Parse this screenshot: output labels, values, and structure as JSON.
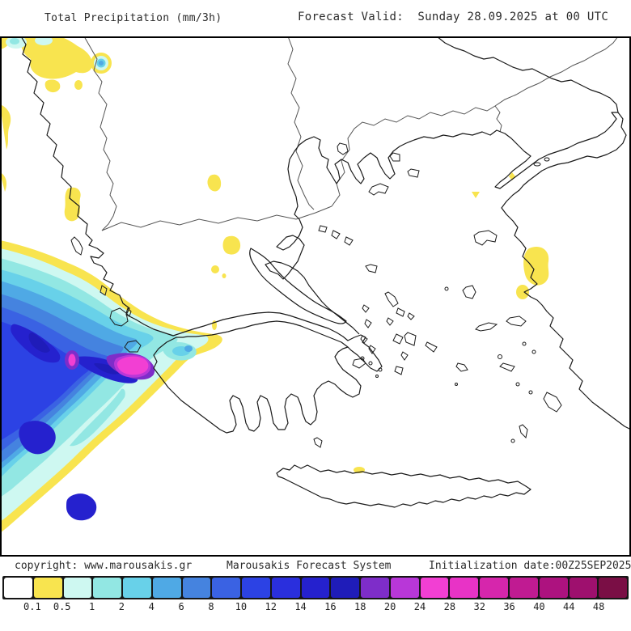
{
  "header": {
    "title": "Total Precipitation (mm/3h)",
    "forecast_valid": "Forecast Valid:  Sunday 28.09.2025 at 00 UTC"
  },
  "footer": {
    "copyright": "copyright: www.marousakis.gr",
    "system_name": "Marousakis Forecast System",
    "init_date": "Initialization date:00Z25SEP2025"
  },
  "colorbar": {
    "unit_labels": [
      "0.1",
      "0.5",
      "1",
      "2",
      "4",
      "6",
      "8",
      "10",
      "12",
      "14",
      "16",
      "18",
      "20",
      "24",
      "28",
      "32",
      "36",
      "40",
      "44",
      "48"
    ],
    "colors": [
      "#ffffff",
      "#f8e44f",
      "#cef8f1",
      "#92e7e3",
      "#68d1e9",
      "#4fa9e5",
      "#4583df",
      "#3a62e3",
      "#2c42e4",
      "#2a2fdd",
      "#2521ce",
      "#1f1cb9",
      "#7e2dc9",
      "#b837d8",
      "#f23fd3",
      "#e833c6",
      "#d626ac",
      "#c01b92",
      "#ad127f",
      "#9e106e",
      "#7a0e45"
    ]
  },
  "map_palette": {
    "yellow": "#f8e44f",
    "pale_cyan": "#cef8f1",
    "light_cyan": "#92e7e3",
    "cyan": "#68d1e9",
    "medium_blue": "#4fa9e5",
    "blue": "#4583df",
    "royal_blue": "#3a62e3",
    "deep_blue": "#2c42e4",
    "navy": "#2521ce",
    "dark_navy": "#1f1cb9",
    "purple": "#7e2dc9",
    "violet": "#b837d8",
    "magenta": "#f23fd3",
    "coastline": "#1a1a1a",
    "border": "#555555"
  }
}
